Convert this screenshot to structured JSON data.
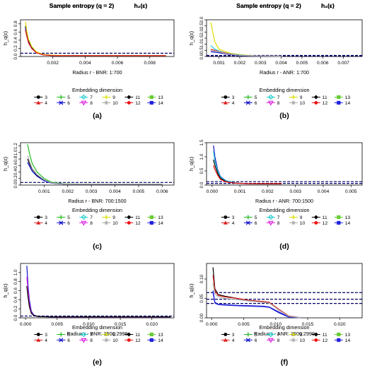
{
  "colors": {
    "d3": "#000000",
    "d4": "#dd2222",
    "d5": "#22bb22",
    "d6": "#1111cc",
    "d7": "#22cccc",
    "d8": "#dd22dd",
    "d9": "#dddd00",
    "d10": "#aaaaaa",
    "d11": "#000000",
    "d12": "#ee1111",
    "d13": "#66cc33",
    "d14": "#2222dd",
    "threshold": "#000066"
  },
  "legend": {
    "title": "Embedding dimension",
    "row1": [
      "3",
      "5",
      "7",
      "9",
      "11",
      "13"
    ],
    "row2": [
      "4",
      "6",
      "8",
      "10",
      "12",
      "14"
    ]
  },
  "chart_data": [
    {
      "type": "line",
      "panel_label": "(a)",
      "title": "Sample entropy (q = 2)",
      "title_math": "h₂(ε)",
      "xlabel": "Radius r - BNR: 1:700",
      "ylabel": "h_q(ε)",
      "xlim": [
        0,
        0.0095
      ],
      "ylim": [
        0,
        0.9
      ],
      "xticks": [
        "0.002",
        "0.004",
        "0.006",
        "0.008"
      ],
      "yticks": [
        "0.0",
        "0.2",
        "0.4",
        "0.6",
        "0.8"
      ],
      "threshold": [
        0.08
      ],
      "x": [
        0.0003,
        0.0004,
        0.0005,
        0.0007,
        0.001,
        0.0014,
        0.002,
        0.003,
        0.005,
        0.007,
        0.009
      ],
      "series": [
        {
          "dim": "3",
          "values": [
            0.75,
            0.55,
            0.38,
            0.22,
            0.1,
            0.05,
            0.03,
            0.02,
            0.02,
            0.02,
            0.02
          ]
        },
        {
          "dim": "6",
          "values": [
            0.7,
            0.5,
            0.35,
            0.2,
            0.09,
            0.04,
            0.02,
            0.02,
            0.02,
            0.02,
            0.02
          ]
        },
        {
          "dim": "9",
          "values": [
            0.85,
            0.6,
            0.42,
            0.24,
            0.11,
            0.05,
            0.03,
            0.02,
            0.02,
            0.02,
            0.02
          ]
        },
        {
          "dim": "12",
          "values": [
            0.65,
            0.48,
            0.33,
            0.19,
            0.09,
            0.04,
            0.02,
            0.02,
            0.02,
            0.02,
            0.02
          ]
        }
      ]
    },
    {
      "type": "line",
      "panel_label": "(b)",
      "title": "Sample entropy (q = 2)",
      "title_math": "h₂(ε)",
      "xlabel": "Radius r - ANR: 1:700",
      "ylabel": "h_q(ε)",
      "xlim": [
        0.0004,
        0.0079
      ],
      "ylim": [
        0,
        3.0
      ],
      "xticks": [
        "0.001",
        "0.002",
        "0.003",
        "0.004",
        "0.005",
        "0.006",
        "0.007"
      ],
      "yticks": [
        "0.0",
        "0.5",
        "1.0",
        "1.5",
        "2.0",
        "2.5",
        "3.0"
      ],
      "threshold": [
        0.04,
        0.09
      ],
      "x": [
        0.0006,
        0.0008,
        0.001,
        0.0013,
        0.0016,
        0.002,
        0.0025,
        0.003,
        0.004
      ],
      "series": [
        {
          "dim": "9",
          "values": [
            2.8,
            1.2,
            0.6,
            0.4,
            0.25,
            0.15,
            0.08,
            0.04,
            0.03
          ]
        },
        {
          "dim": "7",
          "values": [
            0.9,
            0.6,
            0.45,
            0.3,
            0.2,
            0.12,
            0.07,
            0.04,
            0.03
          ]
        },
        {
          "dim": "4",
          "values": [
            0.6,
            0.5,
            0.4,
            0.3,
            0.18,
            0.1,
            0.06,
            0.04,
            0.03
          ]
        },
        {
          "dim": "6",
          "values": [
            0.4,
            0.35,
            0.3,
            0.22,
            0.14,
            0.08,
            0.05,
            0.03,
            0.03
          ]
        },
        {
          "dim": "10",
          "values": [
            0.5,
            0.45,
            0.38,
            0.26,
            0.16,
            0.1,
            0.06,
            0.04,
            0.03
          ]
        }
      ]
    },
    {
      "type": "line",
      "panel_label": "(c)",
      "title": "Sample entropy (q = 2)",
      "title_math": "h₂(ε)",
      "xlabel": "Radius r - BNR: 700:1500",
      "ylabel": "h_q(ε)",
      "xlim": [
        0,
        0.0065
      ],
      "ylim": [
        0,
        1.3
      ],
      "xticks": [
        "0.001",
        "0.002",
        "0.003",
        "0.004",
        "0.005",
        "0.006"
      ],
      "yticks": [
        "0.0",
        "0.2",
        "0.4",
        "0.6",
        "0.8",
        "1.0",
        "1.2"
      ],
      "threshold": [
        0.08
      ],
      "x": [
        0.0003,
        0.0004,
        0.0005,
        0.0007,
        0.001,
        0.0013,
        0.0018,
        0.0025,
        0.004,
        0.006
      ],
      "series": [
        {
          "dim": "5",
          "values": [
            1.25,
            0.9,
            0.65,
            0.4,
            0.2,
            0.09,
            0.04,
            0.03,
            0.03,
            0.03
          ]
        },
        {
          "dim": "3",
          "values": [
            0.8,
            0.62,
            0.48,
            0.3,
            0.15,
            0.07,
            0.03,
            0.03,
            0.03,
            0.03
          ]
        },
        {
          "dim": "6",
          "values": [
            0.7,
            0.55,
            0.42,
            0.27,
            0.13,
            0.06,
            0.03,
            0.03,
            0.03,
            0.03
          ]
        },
        {
          "dim": "10",
          "values": [
            0.9,
            0.68,
            0.5,
            0.32,
            0.16,
            0.07,
            0.03,
            0.03,
            0.03,
            0.03
          ]
        }
      ]
    },
    {
      "type": "line",
      "panel_label": "(d)",
      "title": "Sample entropy (q = 2)",
      "title_math": "h₂(ε)",
      "xlabel": "Radius r - ANR: 700:1500",
      "ylabel": "h_q(ε)",
      "xlim": [
        -0.0002,
        0.0054
      ],
      "ylim": [
        0,
        1.5
      ],
      "xticks": [
        "0.000",
        "0.001",
        "0.002",
        "0.003",
        "0.004",
        "0.005"
      ],
      "yticks": [
        "0.0",
        "0.5",
        "1.0",
        "1.5"
      ],
      "threshold": [
        0.06,
        0.12
      ],
      "x": [
        5e-05,
        0.0001,
        0.0002,
        0.0003,
        0.0005,
        0.0008,
        0.0012,
        0.0018,
        0.0025
      ],
      "series": [
        {
          "dim": "6",
          "values": [
            1.4,
            1.0,
            0.55,
            0.3,
            0.15,
            0.08,
            0.05,
            0.04,
            0.04
          ]
        },
        {
          "dim": "7",
          "values": [
            1.2,
            0.85,
            0.5,
            0.28,
            0.14,
            0.08,
            0.05,
            0.04,
            0.04
          ]
        },
        {
          "dim": "3",
          "values": [
            0.9,
            0.7,
            0.42,
            0.24,
            0.12,
            0.07,
            0.05,
            0.04,
            0.04
          ]
        },
        {
          "dim": "12",
          "values": [
            0.7,
            0.55,
            0.35,
            0.2,
            0.11,
            0.07,
            0.05,
            0.05,
            0.05
          ]
        }
      ]
    },
    {
      "type": "line",
      "panel_label": "(e)",
      "title": "Sample entropy (q = 2)",
      "title_math": "h₂(ε)",
      "xlabel": "Radius r - BNR: 1500:2999",
      "ylabel": "h_q(ε)",
      "xlim": [
        -0.0008,
        0.0235
      ],
      "ylim": [
        0,
        1.2
      ],
      "xticks": [
        "0.000",
        "0.005",
        "0.010",
        "0.015",
        "0.020"
      ],
      "yticks": [
        "0.0",
        "0.2",
        "0.4",
        "0.6",
        "0.8",
        "1.0"
      ],
      "threshold": [
        0.04
      ],
      "x": [
        0.0002,
        0.0004,
        0.0006,
        0.0009,
        0.0013,
        0.002,
        0.004,
        0.01,
        0.023
      ],
      "series": [
        {
          "dim": "6",
          "values": [
            1.15,
            0.7,
            0.4,
            0.15,
            0.06,
            0.03,
            0.02,
            0.02,
            0.02
          ]
        },
        {
          "dim": "8",
          "values": [
            0.9,
            0.6,
            0.32,
            0.12,
            0.05,
            0.03,
            0.02,
            0.02,
            0.02
          ]
        },
        {
          "dim": "3",
          "values": [
            0.7,
            0.45,
            0.25,
            0.1,
            0.05,
            0.03,
            0.02,
            0.02,
            0.02
          ]
        }
      ]
    },
    {
      "type": "line",
      "panel_label": "(f)",
      "title": "Sample entropy (q = 2)",
      "title_math": "h₂(ε)",
      "xlabel": "Radius r - ANR: 1500:2999",
      "ylabel": "h_q(ε)",
      "xlim": [
        -0.0008,
        0.0235
      ],
      "ylim": [
        0,
        0.14
      ],
      "xticks": [
        "0.000",
        "0.005",
        "0.010",
        "0.015",
        "0.020"
      ],
      "yticks": [
        "0.00",
        "0.05",
        "0.10"
      ],
      "threshold": [
        0.065,
        0.048,
        0.037
      ],
      "x": [
        0.0002,
        0.0005,
        0.001,
        0.002,
        0.004,
        0.006,
        0.008,
        0.009,
        0.0105,
        0.012,
        0.014
      ],
      "series": [
        {
          "dim": "3",
          "values": [
            0.13,
            0.075,
            0.06,
            0.056,
            0.05,
            0.045,
            0.042,
            0.04,
            0.02,
            0.005,
            0.0
          ]
        },
        {
          "dim": "4",
          "values": [
            0.11,
            0.07,
            0.058,
            0.054,
            0.05,
            0.045,
            0.042,
            0.04,
            0.022,
            0.005,
            0.0
          ]
        },
        {
          "dim": "6",
          "values": [
            0.07,
            0.04,
            0.035,
            0.034,
            0.032,
            0.031,
            0.03,
            0.028,
            0.015,
            0.003,
            0.0
          ]
        },
        {
          "dim": "14",
          "values": [
            0.065,
            0.038,
            0.034,
            0.033,
            0.031,
            0.03,
            0.029,
            0.027,
            0.013,
            0.002,
            0.0
          ]
        },
        {
          "dim": "10",
          "values": [
            0.09,
            0.062,
            0.055,
            0.05,
            0.047,
            0.043,
            0.04,
            0.038,
            0.02,
            0.004,
            0.0
          ]
        }
      ]
    }
  ]
}
